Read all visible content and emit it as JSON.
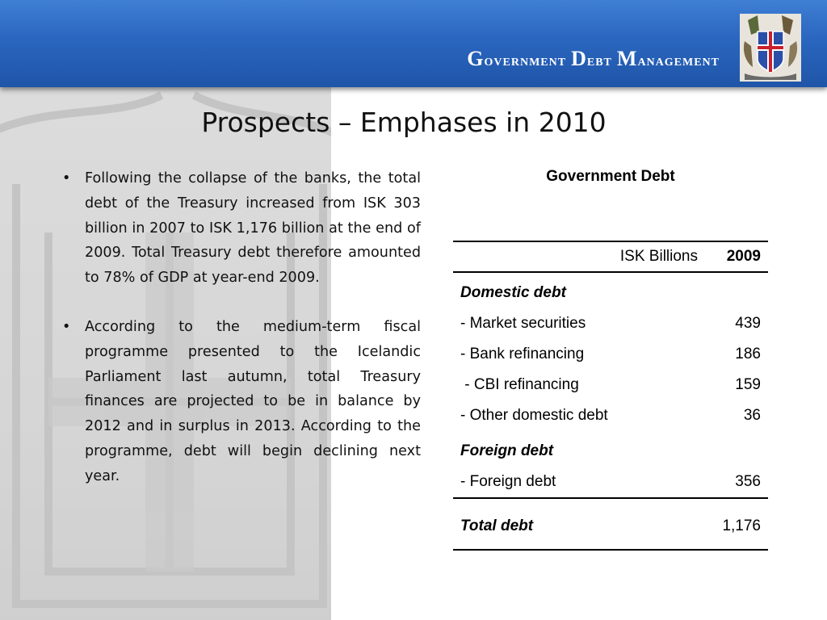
{
  "header": {
    "title_parts": [
      {
        "cap": "G",
        "rest": "overnment"
      },
      {
        "cap": "D",
        "rest": "ebt"
      },
      {
        "cap": "M",
        "rest": "anagement"
      }
    ],
    "logo_icon": "iceland-coat-of-arms-icon"
  },
  "slide": {
    "title": "Prospects – Emphases in 2010",
    "bullets": [
      "Following the collapse of the banks, the total debt of the Treasury increased from ISK 303 billion in 2007 to ISK 1,176 billion at the end of 2009. Total Treasury debt therefore amounted to 78% of GDP at year-end 2009.",
      "According to the medium-term fiscal programme presented to the Icelandic Parliament last autumn, total Treasury finances are projected to be in balance by 2012 and in surplus in 2013. According to the programme, debt will begin declining next year."
    ],
    "bullet_symbol": "•"
  },
  "table": {
    "caption": "Government Debt",
    "unit_label": "ISK Billions",
    "year": "2009",
    "domestic_heading": "Domestic debt",
    "domestic_rows": [
      {
        "label": "- Market securities",
        "value": "439"
      },
      {
        "label": "- Bank refinancing",
        "value": "186"
      },
      {
        "label": " - CBI refinancing",
        "value": "159"
      },
      {
        "label": "- Other domestic debt",
        "value": "36"
      }
    ],
    "foreign_heading": "Foreign debt",
    "foreign_rows": [
      {
        "label": "- Foreign debt",
        "value": "356"
      }
    ],
    "total_label": "Total debt",
    "total_value": "1,176"
  },
  "colors": {
    "header_blue": "#2a66bf",
    "left_panel_gray": "#d6d6d6"
  }
}
